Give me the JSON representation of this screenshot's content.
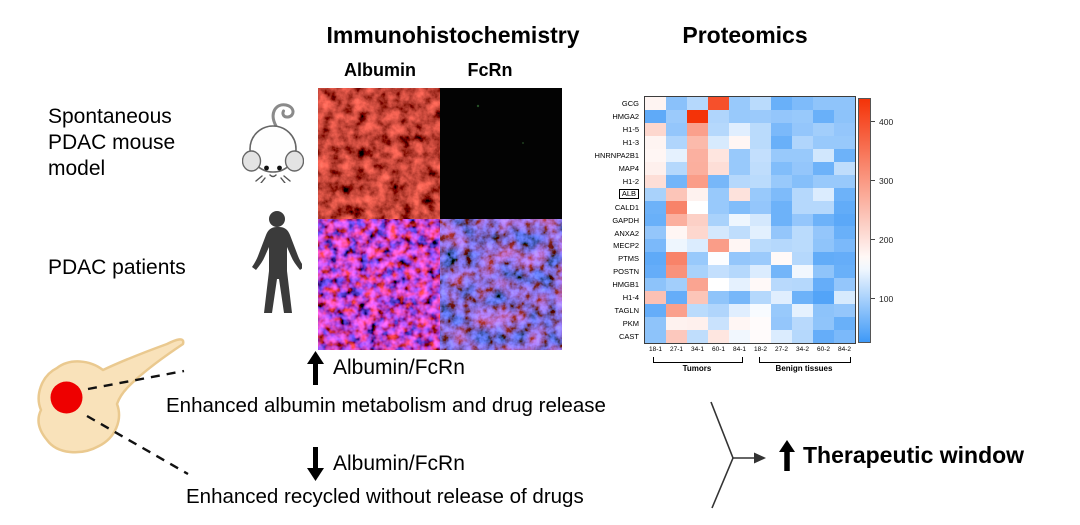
{
  "figure": {
    "ihc_title": "Immunohistochemistry",
    "proteomics_title": "Proteomics",
    "ihc_columns": [
      "Albumin",
      "FcRn"
    ],
    "left_labels": {
      "mouse_model": "Spontaneous\nPDAC mouse\nmodel",
      "patients": "PDAC patients"
    }
  },
  "annotations": {
    "increase": {
      "arrow": "up",
      "label": "Albumin/FcRn",
      "desc": "Enhanced albumin metabolism and drug release"
    },
    "decrease": {
      "arrow": "down",
      "label": "Albumin/FcRn",
      "desc": "Enhanced recycled without release of drugs"
    },
    "outcome": {
      "arrow": "up",
      "label": "Therapeutic window"
    }
  },
  "colors": {
    "heatmap_low": "#3e99f7",
    "heatmap_high": "#f43308",
    "pancreas_fill": "#f9e2ba",
    "pancreas_outline": "#eac98f",
    "tumor_dot": "#ee0000",
    "silhouette": "#3b3b3b"
  },
  "chart_data": {
    "type": "heatmap",
    "title": "Proteomics",
    "rows": [
      "GCG",
      "HMGA2",
      "H1-5",
      "H1-3",
      "HNRNPA2B1",
      "MAP4",
      "H1-2",
      "ALB",
      "CALD1",
      "GAPDH",
      "ANXA2",
      "MECP2",
      "PTMS",
      "POSTN",
      "HMGB1",
      "H1-4",
      "TAGLN",
      "PKM",
      "CAST"
    ],
    "highlighted_row": "ALB",
    "columns": [
      "18-1",
      "27-1",
      "34-1",
      "60-1",
      "84-1",
      "18-2",
      "27-2",
      "34-2",
      "60-2",
      "84-2"
    ],
    "column_groups": [
      {
        "label": "Tumors",
        "columns": [
          "18-1",
          "27-1",
          "34-1",
          "60-1",
          "84-1"
        ]
      },
      {
        "label": "Benign tissues",
        "columns": [
          "18-2",
          "27-2",
          "34-2",
          "60-2",
          "84-2"
        ]
      }
    ],
    "values": [
      [
        175,
        78,
        108,
        400,
        88,
        112,
        55,
        70,
        82,
        82
      ],
      [
        48,
        90,
        440,
        105,
        88,
        90,
        85,
        88,
        55,
        80
      ],
      [
        215,
        85,
        290,
        108,
        138,
        112,
        68,
        85,
        95,
        85
      ],
      [
        175,
        105,
        255,
        132,
        172,
        112,
        55,
        105,
        88,
        88
      ],
      [
        172,
        142,
        268,
        196,
        88,
        118,
        88,
        88,
        128,
        58
      ],
      [
        180,
        108,
        270,
        205,
        88,
        115,
        72,
        85,
        58,
        115
      ],
      [
        205,
        62,
        295,
        65,
        108,
        112,
        88,
        75,
        88,
        88
      ],
      [
        100,
        240,
        178,
        88,
        200,
        88,
        70,
        108,
        135,
        58
      ],
      [
        58,
        330,
        160,
        88,
        72,
        85,
        58,
        108,
        108,
        50
      ],
      [
        55,
        270,
        225,
        100,
        148,
        130,
        58,
        85,
        58,
        45
      ],
      [
        85,
        172,
        215,
        130,
        115,
        140,
        85,
        112,
        85,
        55
      ],
      [
        68,
        148,
        135,
        295,
        172,
        112,
        108,
        112,
        82,
        68
      ],
      [
        48,
        330,
        88,
        158,
        85,
        90,
        168,
        108,
        50,
        52
      ],
      [
        52,
        310,
        100,
        118,
        108,
        135,
        62,
        150,
        82,
        55
      ],
      [
        80,
        95,
        285,
        160,
        142,
        168,
        110,
        108,
        52,
        85
      ],
      [
        245,
        52,
        240,
        82,
        65,
        108,
        138,
        58,
        40,
        132
      ],
      [
        52,
        290,
        112,
        105,
        138,
        155,
        88,
        142,
        80,
        85
      ],
      [
        82,
        178,
        180,
        122,
        172,
        165,
        85,
        110,
        82,
        55
      ],
      [
        80,
        235,
        115,
        195,
        150,
        165,
        135,
        108,
        52,
        68
      ]
    ],
    "colorbar": {
      "ticks": [
        100,
        200,
        300,
        400
      ],
      "vmin": 25,
      "vmax": 440,
      "white_point": 160,
      "position": "right"
    },
    "grid": false
  }
}
